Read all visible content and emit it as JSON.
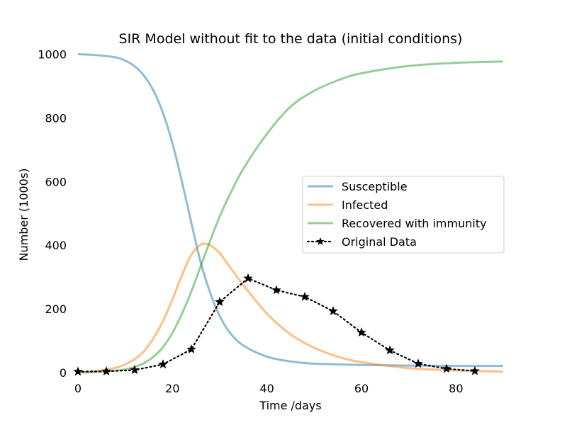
{
  "chart_data": {
    "type": "line",
    "title": "SIR Model without fit to the data (initial conditions)",
    "xlabel": "Time /days",
    "ylabel": "Number (1000s)",
    "xlim": [
      -1.5,
      91.5
    ],
    "ylim": [
      -20,
      1010
    ],
    "x_ticks": [
      0,
      20,
      40,
      60,
      80
    ],
    "y_ticks": [
      0,
      200,
      400,
      600,
      800,
      1000
    ],
    "grid": false,
    "legend_position": "center-right",
    "series": [
      {
        "name": "Susceptible",
        "color": "#1f77b4",
        "alpha": 0.5,
        "style": "solid",
        "x": [
          0,
          4,
          8,
          10,
          12,
          14,
          16,
          18,
          20,
          22,
          24,
          26,
          28,
          30,
          32,
          35,
          40,
          45,
          50,
          60,
          70,
          80,
          90
        ],
        "y": [
          1000,
          997,
          990,
          980,
          962,
          932,
          885,
          815,
          720,
          600,
          470,
          345,
          250,
          178,
          128,
          85,
          50,
          35,
          28,
          24,
          22,
          21,
          21
        ]
      },
      {
        "name": "Infected",
        "color": "#ff7f0e",
        "alpha": 0.5,
        "style": "solid",
        "x": [
          0,
          4,
          8,
          10,
          12,
          14,
          16,
          18,
          20,
          22,
          24,
          26,
          27,
          28,
          30,
          32,
          35,
          40,
          45,
          50,
          55,
          60,
          70,
          80,
          90
        ],
        "y": [
          1,
          5,
          15,
          26,
          42,
          68,
          108,
          162,
          230,
          305,
          370,
          402,
          404,
          400,
          375,
          335,
          275,
          185,
          120,
          78,
          50,
          33,
          14,
          7,
          3
        ]
      },
      {
        "name": "Recovered with immunity",
        "color": "#2ca02c",
        "alpha": 0.5,
        "style": "solid",
        "x": [
          0,
          4,
          8,
          10,
          12,
          14,
          16,
          18,
          20,
          22,
          24,
          26,
          28,
          30,
          32,
          35,
          40,
          45,
          50,
          55,
          60,
          70,
          80,
          90
        ],
        "y": [
          0,
          2,
          6,
          10,
          18,
          30,
          50,
          80,
          125,
          185,
          255,
          335,
          415,
          490,
          555,
          640,
          750,
          835,
          885,
          918,
          940,
          963,
          973,
          977
        ]
      },
      {
        "name": "Original Data",
        "color": "#000000",
        "alpha": 1,
        "style": "dotted",
        "marker": "star",
        "x": [
          0,
          6,
          12,
          18,
          24,
          30,
          36,
          42,
          48,
          54,
          60,
          66,
          72,
          78,
          84
        ],
        "y": [
          3,
          4,
          8,
          26,
          73,
          222,
          296,
          259,
          238,
          193,
          126,
          70,
          28,
          12,
          5
        ]
      }
    ]
  }
}
